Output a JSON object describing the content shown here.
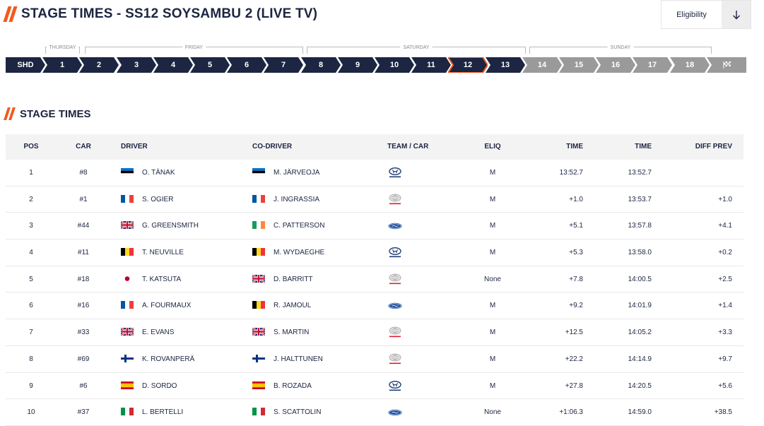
{
  "header": {
    "title": "STAGE TIMES - SS12 SOYSAMBU 2 (LIVE TV)"
  },
  "eligibility": {
    "label": "Eligibility"
  },
  "days": [
    {
      "label": "THURSDAY"
    },
    {
      "label": "FRIDAY"
    },
    {
      "label": "SATURDAY"
    },
    {
      "label": "SUNDAY"
    }
  ],
  "stages": [
    "SHD",
    "1",
    "2",
    "3",
    "4",
    "5",
    "6",
    "7",
    "8",
    "9",
    "10",
    "11",
    "12",
    "13",
    "14",
    "15",
    "16",
    "17",
    "18"
  ],
  "current_stage": "12",
  "section": {
    "title": "STAGE TIMES"
  },
  "table": {
    "headers": {
      "pos": "POS",
      "car": "CAR",
      "driver": "DRIVER",
      "codriver": "CO-DRIVER",
      "team": "TEAM / CAR",
      "eliq": "ELIQ",
      "time": "TIME",
      "time2": "TIME",
      "diff": "DIFF PREV"
    },
    "rows": [
      {
        "pos": "1",
        "car": "#8",
        "driver": "O. TÄNAK",
        "driver_flag": "EST",
        "codriver": "M. JÄRVEOJA",
        "codriver_flag": "EST",
        "team_logo": "hyundai",
        "eliq": "M",
        "time": "13:52.7",
        "total": "13:52.7",
        "diff": ""
      },
      {
        "pos": "2",
        "car": "#1",
        "driver": "S. OGIER",
        "driver_flag": "FRA",
        "codriver": "J. INGRASSIA",
        "codriver_flag": "FRA",
        "team_logo": "toyota",
        "eliq": "M",
        "time": "+1.0",
        "total": "13:53.7",
        "diff": "+1.0"
      },
      {
        "pos": "3",
        "car": "#44",
        "driver": "G. GREENSMITH",
        "driver_flag": "GBR",
        "codriver": "C. PATTERSON",
        "codriver_flag": "IRL",
        "team_logo": "ford",
        "eliq": "M",
        "time": "+5.1",
        "total": "13:57.8",
        "diff": "+4.1"
      },
      {
        "pos": "4",
        "car": "#11",
        "driver": "T. NEUVILLE",
        "driver_flag": "BEL",
        "codriver": "M. WYDAEGHE",
        "codriver_flag": "BEL",
        "team_logo": "hyundai",
        "eliq": "M",
        "time": "+5.3",
        "total": "13:58.0",
        "diff": "+0.2"
      },
      {
        "pos": "5",
        "car": "#18",
        "driver": "T. KATSUTA",
        "driver_flag": "JPN",
        "codriver": "D. BARRITT",
        "codriver_flag": "GBR",
        "team_logo": "toyota",
        "eliq": "None",
        "time": "+7.8",
        "total": "14:00.5",
        "diff": "+2.5"
      },
      {
        "pos": "6",
        "car": "#16",
        "driver": "A. FOURMAUX",
        "driver_flag": "FRA",
        "codriver": "R. JAMOUL",
        "codriver_flag": "BEL",
        "team_logo": "ford",
        "eliq": "M",
        "time": "+9.2",
        "total": "14:01.9",
        "diff": "+1.4"
      },
      {
        "pos": "7",
        "car": "#33",
        "driver": "E. EVANS",
        "driver_flag": "GBR",
        "codriver": "S. MARTIN",
        "codriver_flag": "GBR",
        "team_logo": "toyota",
        "eliq": "M",
        "time": "+12.5",
        "total": "14:05.2",
        "diff": "+3.3"
      },
      {
        "pos": "8",
        "car": "#69",
        "driver": "K. ROVANPERÄ",
        "driver_flag": "FIN",
        "codriver": "J. HALTTUNEN",
        "codriver_flag": "FIN",
        "team_logo": "toyota",
        "eliq": "M",
        "time": "+22.2",
        "total": "14:14.9",
        "diff": "+9.7"
      },
      {
        "pos": "9",
        "car": "#6",
        "driver": "D. SORDO",
        "driver_flag": "ESP",
        "codriver": "B. ROZADA",
        "codriver_flag": "ESP",
        "team_logo": "hyundai",
        "eliq": "M",
        "time": "+27.8",
        "total": "14:20.5",
        "diff": "+5.6"
      },
      {
        "pos": "10",
        "car": "#37",
        "driver": "L. BERTELLI",
        "driver_flag": "ITA",
        "codriver": "S. SCATTOLIN",
        "codriver_flag": "ITA",
        "team_logo": "ford",
        "eliq": "None",
        "time": "+1:06.3",
        "total": "14:59.0",
        "diff": "+38.5"
      }
    ]
  },
  "colors": {
    "navy": "#1c2541",
    "accent": "#f25a1f",
    "future": "#9a9a9a"
  }
}
